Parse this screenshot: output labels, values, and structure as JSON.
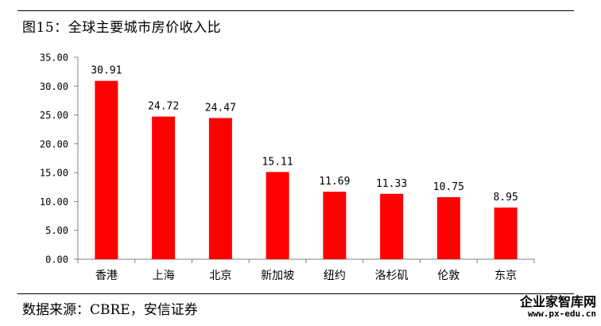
{
  "header": {
    "title": "图15：全球主要城市房价收入比"
  },
  "chart_data": {
    "type": "bar",
    "categories": [
      "香港",
      "上海",
      "北京",
      "新加坡",
      "纽约",
      "洛杉矶",
      "伦敦",
      "东京"
    ],
    "values": [
      30.91,
      24.72,
      24.47,
      15.11,
      11.69,
      11.33,
      10.75,
      8.95
    ],
    "value_labels": [
      "30.91",
      "24.72",
      "24.47",
      "15.11",
      "11.69",
      "11.33",
      "10.75",
      "8.95"
    ],
    "y_ticks": [
      0,
      5,
      10,
      15,
      20,
      25,
      30,
      35
    ],
    "y_tick_labels": [
      "0.00",
      "5.00",
      "10.00",
      "15.00",
      "20.00",
      "25.00",
      "30.00",
      "35.00"
    ],
    "ylim": [
      0,
      35
    ],
    "title": "",
    "xlabel": "",
    "ylabel": "",
    "grid": false,
    "bar_color": "#ff0000"
  },
  "footer": {
    "source": "数据来源：CBRE，安信证券"
  },
  "watermark": {
    "title": "企业家智库网",
    "url": "www.px-edu.cn"
  }
}
